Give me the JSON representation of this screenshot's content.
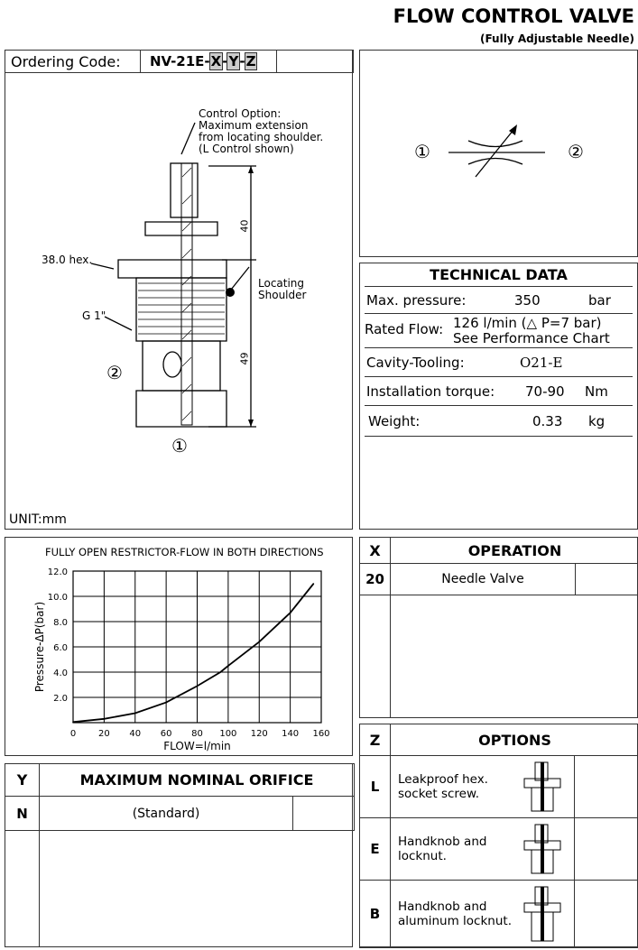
{
  "header": {
    "title": "FLOW CONTROL VALVE",
    "subtitle": "(Fully Adjustable Needle)"
  },
  "ordering": {
    "label": "Ordering Code:",
    "code_prefix": "NV-21E-",
    "x": "X",
    "y": "Y",
    "z": "Z",
    "sep": "-"
  },
  "drawing": {
    "control_option": [
      "Control Option:",
      "Maximum extension",
      "from locating shoulder.",
      "(L Control shown)"
    ],
    "hex": "38.0 hex.",
    "thread": "G 1\"",
    "locating": [
      "Locating",
      "Shoulder"
    ],
    "dim_top": "40",
    "dim_bottom": "49",
    "port2": "②",
    "port1": "①",
    "unit": "UNIT:mm"
  },
  "symbol": {
    "port1": "①",
    "port2": "②"
  },
  "technical": {
    "title": "TECHNICAL DATA",
    "rows": [
      {
        "label": "Max. pressure:",
        "value": "350",
        "unit": "bar"
      },
      {
        "label": "Rated Flow:",
        "value": "126 l/min (△ P=7 bar)",
        "value2": "See Performance Chart"
      },
      {
        "label": "Cavity-Tooling:",
        "value": "O21-E"
      },
      {
        "label": "Installation torque:",
        "value": "70-90",
        "unit": "Nm"
      },
      {
        "label": "Weight:",
        "value": "0.33",
        "unit": "kg"
      }
    ]
  },
  "chart_data": {
    "type": "line",
    "title": "FULLY OPEN RESTRICTOR-FLOW IN BOTH DIRECTIONS",
    "xlabel": "FLOW=l/min",
    "ylabel": "Pressure-ΔP(bar)",
    "xlim": [
      0,
      160
    ],
    "ylim": [
      0,
      12
    ],
    "grid": true,
    "xticks": [
      "0",
      "20",
      "40",
      "60",
      "80",
      "100",
      "120",
      "140",
      "160"
    ],
    "yticks": [
      "2.0",
      "4.0",
      "6.0",
      "8.0",
      "10.0",
      "12.0"
    ],
    "x": [
      0,
      20,
      40,
      60,
      80,
      95,
      100,
      120,
      140,
      155
    ],
    "y": [
      0.05,
      0.3,
      0.75,
      1.6,
      2.9,
      4.0,
      4.5,
      6.4,
      8.7,
      11.0
    ]
  },
  "operation": {
    "col": "X",
    "title": "OPERATION",
    "rows": [
      {
        "code": "20",
        "label": "Needle Valve"
      }
    ]
  },
  "orifice": {
    "col": "Y",
    "title": "MAXIMUM NOMINAL ORIFICE",
    "rows": [
      {
        "code": "N",
        "label": "(Standard)"
      }
    ]
  },
  "options": {
    "col": "Z",
    "title": "OPTIONS",
    "rows": [
      {
        "code": "L",
        "label": [
          "Leakproof hex.",
          "socket screw."
        ]
      },
      {
        "code": "E",
        "label": [
          "Handknob and",
          "locknut."
        ]
      },
      {
        "code": "B",
        "label": [
          "Handknob and",
          "aluminum locknut."
        ]
      }
    ]
  }
}
